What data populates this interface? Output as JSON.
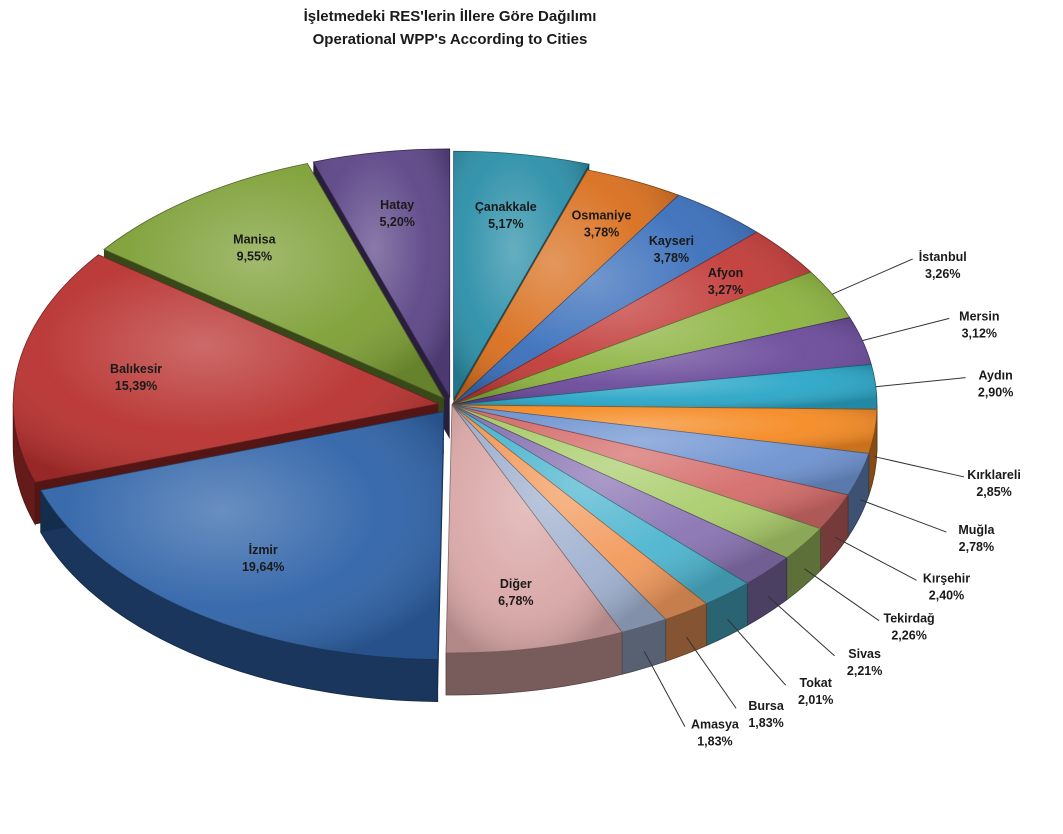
{
  "chart_data": {
    "type": "pie",
    "title": "İşletmedeki RES'lerin İllere Göre Dağılımı",
    "subtitle": "Operational WPP's According to Cities",
    "slices": [
      {
        "name": "Çanakkale",
        "value": 5.17,
        "label": "5,17%",
        "color": "#2b8fa8"
      },
      {
        "name": "Osmaniye",
        "value": 3.78,
        "label": "3,78%",
        "color": "#d96f1e"
      },
      {
        "name": "Kayseri",
        "value": 3.78,
        "label": "3,78%",
        "color": "#3a6fbb"
      },
      {
        "name": "Afyon",
        "value": 3.27,
        "label": "3,27%",
        "color": "#c23b38"
      },
      {
        "name": "İstanbul",
        "value": 3.26,
        "label": "3,26%",
        "color": "#8cb33f"
      },
      {
        "name": "Mersin",
        "value": 3.12,
        "label": "3,12%",
        "color": "#6a4a9a"
      },
      {
        "name": "Aydın",
        "value": 2.9,
        "label": "2,90%",
        "color": "#2aa6c7"
      },
      {
        "name": "Kırklareli",
        "value": 2.85,
        "label": "2,85%",
        "color": "#f58a23"
      },
      {
        "name": "Muğla",
        "value": 2.78,
        "label": "2,78%",
        "color": "#6e93d1"
      },
      {
        "name": "Kırşehir",
        "value": 2.4,
        "label": "2,40%",
        "color": "#d46c6a"
      },
      {
        "name": "Tekirdağ",
        "value": 2.26,
        "label": "2,26%",
        "color": "#a9cc6a"
      },
      {
        "name": "Sivas",
        "value": 2.21,
        "label": "2,21%",
        "color": "#8a74b3"
      },
      {
        "name": "Tokat",
        "value": 2.01,
        "label": "2,01%",
        "color": "#4db5cf"
      },
      {
        "name": "Bursa",
        "value": 1.83,
        "label": "1,83%",
        "color": "#f29a5c"
      },
      {
        "name": "Amasya",
        "value": 1.83,
        "label": "1,83%",
        "color": "#9fb0cf"
      },
      {
        "name": "Diğer",
        "value": 6.78,
        "label": "6,78%",
        "color": "#d9a7a6"
      },
      {
        "name": "İzmir",
        "value": 19.64,
        "label": "19,64%",
        "color": "#2f63a8"
      },
      {
        "name": "Balıkesir",
        "value": 15.39,
        "label": "15,39%",
        "color": "#b8312f"
      },
      {
        "name": "Manisa",
        "value": 9.55,
        "label": "9,55%",
        "color": "#7d9f35"
      },
      {
        "name": "Hatay",
        "value": 5.2,
        "label": "5,20%",
        "color": "#5c4587"
      }
    ],
    "legend": "none",
    "data_labels": "category and percentage",
    "style": "3d exploded pie"
  }
}
